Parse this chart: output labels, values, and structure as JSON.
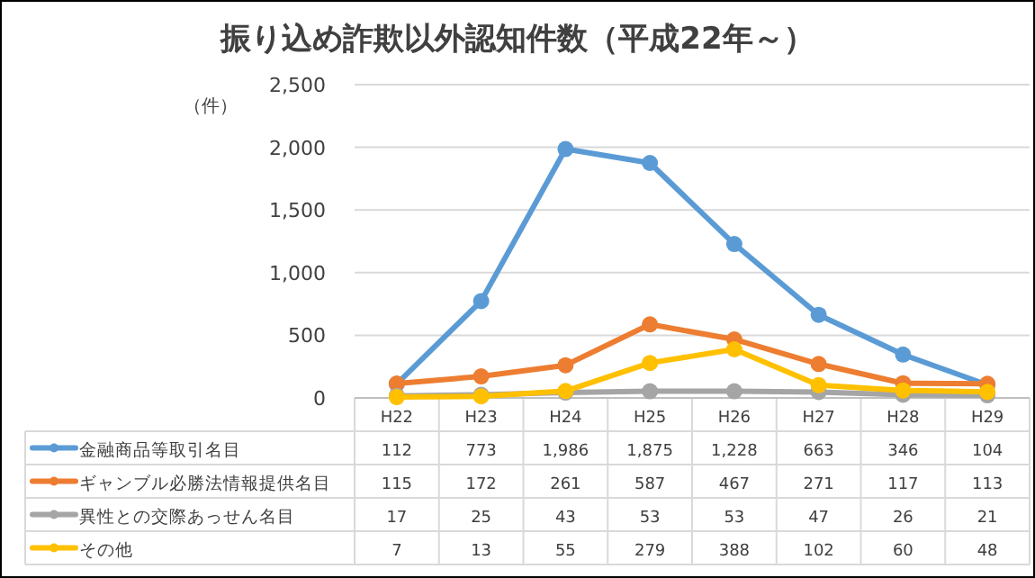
{
  "chart_data": {
    "type": "line",
    "title": "振り込め詐欺以外認知件数（平成22年～）",
    "ylabel": "（件）",
    "categories": [
      "H22",
      "H23",
      "H24",
      "H25",
      "H26",
      "H27",
      "H28",
      "H29"
    ],
    "series": [
      {
        "name": "金融商品等取引名目",
        "color": "#5b9bd5",
        "values": [
          112,
          773,
          1986,
          1875,
          1228,
          663,
          346,
          104
        ],
        "value_labels": [
          "112",
          "773",
          "1,986",
          "1,875",
          "1,228",
          "663",
          "346",
          "104"
        ]
      },
      {
        "name": "ギャンブル必勝法情報提供名目",
        "color": "#ed7d31",
        "values": [
          115,
          172,
          261,
          587,
          467,
          271,
          117,
          113
        ],
        "value_labels": [
          "115",
          "172",
          "261",
          "587",
          "467",
          "271",
          "117",
          "113"
        ]
      },
      {
        "name": "異性との交際あっせん名目",
        "color": "#a5a5a5",
        "values": [
          17,
          25,
          43,
          53,
          53,
          47,
          26,
          21
        ],
        "value_labels": [
          "17",
          "25",
          "43",
          "53",
          "53",
          "47",
          "26",
          "21"
        ]
      },
      {
        "name": "その他",
        "color": "#ffc000",
        "values": [
          7,
          13,
          55,
          279,
          388,
          102,
          60,
          48
        ],
        "value_labels": [
          "7",
          "13",
          "55",
          "279",
          "388",
          "102",
          "60",
          "48"
        ]
      }
    ],
    "ylim": [
      0,
      2500
    ],
    "yticks": [
      0,
      500,
      {
        "value": 1000,
        "label": "1,000"
      },
      {
        "value": 1500,
        "label": "1,500"
      },
      {
        "value": 2000,
        "label": "2,000"
      },
      {
        "value": 2500,
        "label": "2,500"
      }
    ],
    "grid": "y",
    "marker": "circle",
    "line_style": "solid",
    "legend": "bottom"
  }
}
